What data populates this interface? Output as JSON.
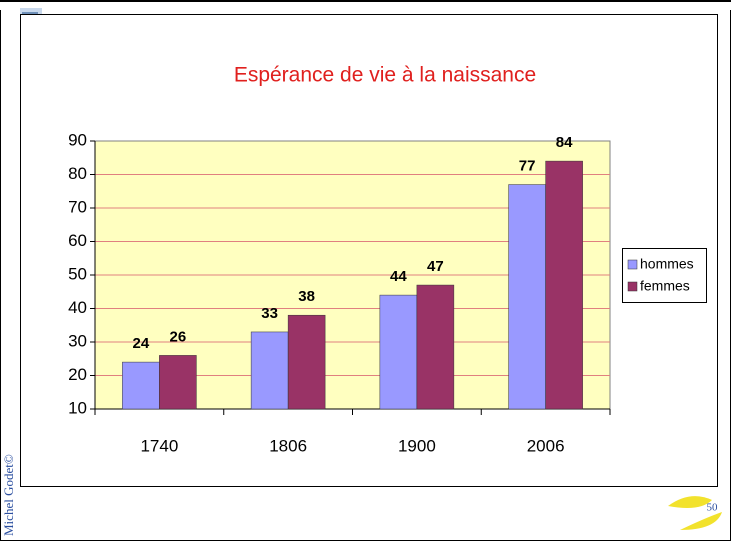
{
  "chart_data": {
    "type": "bar",
    "title": "Espérance de vie à la naissance",
    "categories": [
      "1740",
      "1806",
      "1900",
      "2006"
    ],
    "series": [
      {
        "name": "hommes",
        "color": "#9999ff",
        "values": [
          24,
          33,
          44,
          77
        ]
      },
      {
        "name": "femmes",
        "color": "#993366",
        "values": [
          26,
          38,
          47,
          84
        ]
      }
    ],
    "ylim": [
      10,
      90
    ],
    "yticks": [
      10,
      20,
      30,
      40,
      50,
      60,
      70,
      80,
      90
    ],
    "grid": true,
    "legend": "right"
  },
  "footer": {
    "author": "Michel Godet©",
    "page": "50"
  }
}
